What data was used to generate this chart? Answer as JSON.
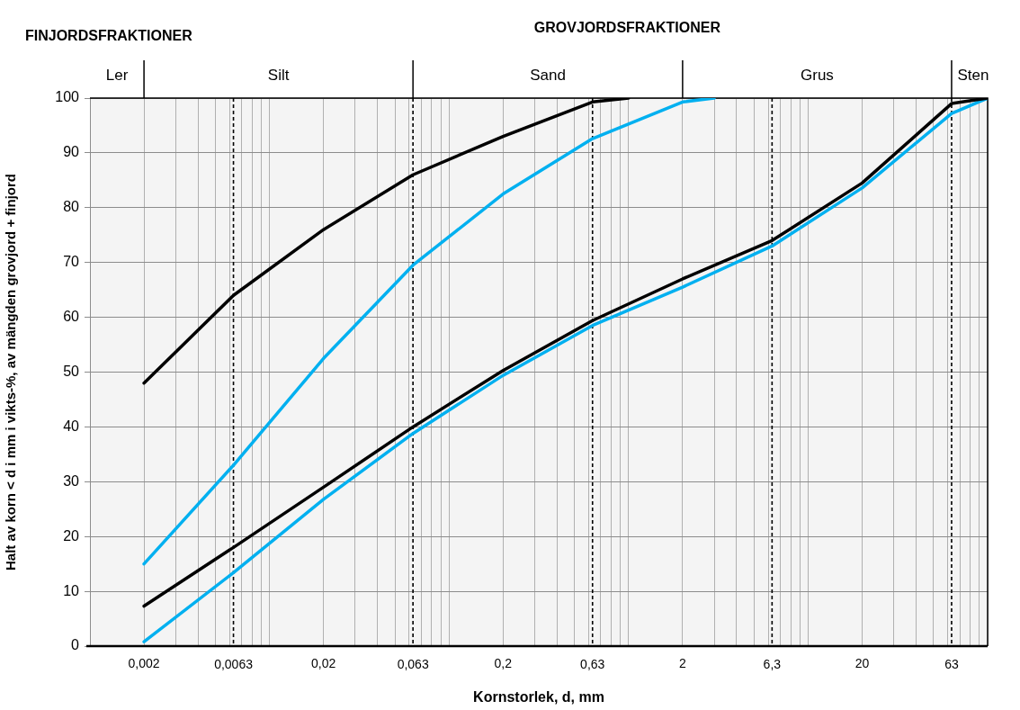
{
  "chart_data": {
    "type": "line",
    "xlabel": "Kornstorlek, d, mm",
    "ylabel": "Halt av korn < d i mm i vikts-%, av mängden grovjord + finjord",
    "log": "x",
    "xlim": [
      0.001,
      100
    ],
    "ylim": [
      0,
      100
    ],
    "xticks": [
      {
        "value": 0.001,
        "label": null
      },
      {
        "value": 0.002,
        "label": "0,002"
      },
      {
        "value": 0.003,
        "label": null
      },
      {
        "value": 0.004,
        "label": null
      },
      {
        "value": 0.005,
        "label": null
      },
      {
        "value": 0.006,
        "label": null
      },
      {
        "value": 0.007,
        "label": null
      },
      {
        "value": 0.008,
        "label": null
      },
      {
        "value": 0.009,
        "label": null
      },
      {
        "value": 0.01,
        "label": null
      },
      {
        "value": 0.02,
        "label": "0,02"
      },
      {
        "value": 0.03,
        "label": null
      },
      {
        "value": 0.04,
        "label": null
      },
      {
        "value": 0.05,
        "label": null
      },
      {
        "value": 0.06,
        "label": null
      },
      {
        "value": 0.07,
        "label": null
      },
      {
        "value": 0.08,
        "label": null
      },
      {
        "value": 0.09,
        "label": null
      },
      {
        "value": 0.1,
        "label": null
      },
      {
        "value": 0.2,
        "label": "0,2"
      },
      {
        "value": 0.3,
        "label": null
      },
      {
        "value": 0.4,
        "label": null
      },
      {
        "value": 0.5,
        "label": null
      },
      {
        "value": 0.6,
        "label": null
      },
      {
        "value": 0.7,
        "label": null
      },
      {
        "value": 0.8,
        "label": null
      },
      {
        "value": 0.9,
        "label": null
      },
      {
        "value": 1,
        "label": null
      },
      {
        "value": 2,
        "label": "2"
      },
      {
        "value": 3,
        "label": null
      },
      {
        "value": 4,
        "label": null
      },
      {
        "value": 5,
        "label": null
      },
      {
        "value": 6,
        "label": null
      },
      {
        "value": 7,
        "label": null
      },
      {
        "value": 8,
        "label": null
      },
      {
        "value": 9,
        "label": null
      },
      {
        "value": 10,
        "label": null
      },
      {
        "value": 20,
        "label": "20"
      },
      {
        "value": 30,
        "label": null
      },
      {
        "value": 40,
        "label": null
      },
      {
        "value": 50,
        "label": null
      },
      {
        "value": 60,
        "label": null
      },
      {
        "value": 70,
        "label": null
      },
      {
        "value": 80,
        "label": null
      },
      {
        "value": 90,
        "label": null
      },
      {
        "value": 100,
        "label": null
      }
    ],
    "yticks": [
      0,
      10,
      20,
      30,
      40,
      50,
      60,
      70,
      80,
      90,
      100
    ],
    "grid": true,
    "marker": "none",
    "line_style": "solid",
    "legend": false,
    "series": [
      {
        "color": "#000000",
        "x": [
          0.002,
          0.0063,
          0.02,
          0.063,
          0.2,
          0.63,
          1
        ],
        "values": [
          48,
          64,
          76,
          86,
          93,
          99.3,
          100
        ]
      },
      {
        "color": "#00b0f0",
        "x": [
          0.002,
          0.0063,
          0.02,
          0.063,
          0.2,
          0.63,
          2,
          3
        ],
        "values": [
          15,
          33,
          52.5,
          69.5,
          82.5,
          92.6,
          99.3,
          100
        ]
      },
      {
        "color": "#000000",
        "x": [
          0.002,
          0.0063,
          0.02,
          0.063,
          0.2,
          0.63,
          2,
          6.3,
          20,
          63,
          100
        ],
        "values": [
          7.3,
          18,
          29,
          40,
          50.3,
          59.4,
          67,
          74,
          84.5,
          99,
          100
        ]
      },
      {
        "color": "#00b0f0",
        "x": [
          0.002,
          0.0063,
          0.02,
          0.063,
          0.2,
          0.63,
          2,
          6.3,
          20,
          63,
          100
        ],
        "values": [
          0.8,
          13.4,
          26.8,
          38.8,
          49.4,
          58.5,
          65.5,
          73,
          83.6,
          97.2,
          100
        ]
      }
    ],
    "ref_lines": [
      {
        "axis": "x",
        "value": 0.0063,
        "label": "0,0063",
        "line_style": "dashed",
        "color": "#000000"
      },
      {
        "axis": "x",
        "value": 0.063,
        "label": "0,063",
        "line_style": "dashed",
        "color": "#000000"
      },
      {
        "axis": "x",
        "value": 0.63,
        "label": "0,63",
        "line_style": "dashed",
        "color": "#000000"
      },
      {
        "axis": "x",
        "value": 6.3,
        "label": "6,3",
        "line_style": "dashed",
        "color": "#000000"
      },
      {
        "axis": "x",
        "value": 63,
        "label": "63",
        "line_style": "dashed",
        "color": "#000000"
      }
    ],
    "bands": [
      {
        "axis": "x",
        "from": 0.001,
        "to": 0.002,
        "label": "Ler",
        "color": "#f4f4f4"
      },
      {
        "axis": "x",
        "from": 0.002,
        "to": 0.063,
        "label": "Silt",
        "color": "#f4f4f4"
      },
      {
        "axis": "x",
        "from": 0.063,
        "to": 2,
        "label": "Sand",
        "color": "#f4f4f4"
      },
      {
        "axis": "x",
        "from": 2,
        "to": 63,
        "label": "Grus",
        "color": "#f4f4f4"
      },
      {
        "axis": "x",
        "from": 63,
        "to": 100,
        "label": "Sten",
        "color": "#f4f4f4"
      }
    ],
    "annotations": [
      "FINJORDSFRAKTIONER",
      "GROVJORDSFRAKTIONER"
    ]
  }
}
